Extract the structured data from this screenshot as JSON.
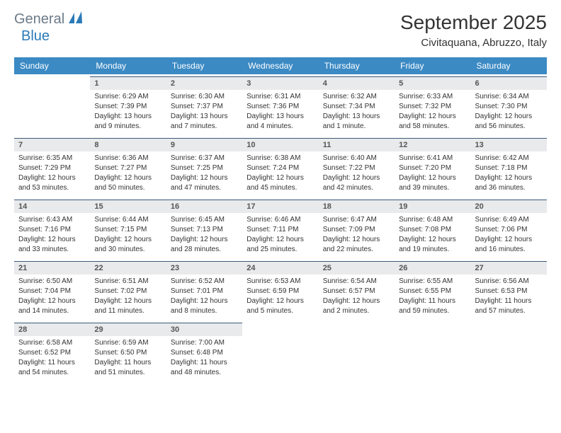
{
  "logo": {
    "text1": "General",
    "text2": "Blue"
  },
  "title": "September 2025",
  "location": "Civitaquana, Abruzzo, Italy",
  "colors": {
    "header_bg": "#3b8ac4",
    "header_text": "#ffffff",
    "day_number_bg": "#e9eaec",
    "day_number_border": "#3b5a7a",
    "logo_gray": "#6c7a89",
    "logo_blue": "#2a7ab8",
    "sail_blue": "#2a7ab8",
    "body_text": "#333333"
  },
  "weekdays": [
    "Sunday",
    "Monday",
    "Tuesday",
    "Wednesday",
    "Thursday",
    "Friday",
    "Saturday"
  ],
  "weeks": [
    [
      null,
      {
        "n": "1",
        "sr": "Sunrise: 6:29 AM",
        "ss": "Sunset: 7:39 PM",
        "dl": "Daylight: 13 hours and 9 minutes."
      },
      {
        "n": "2",
        "sr": "Sunrise: 6:30 AM",
        "ss": "Sunset: 7:37 PM",
        "dl": "Daylight: 13 hours and 7 minutes."
      },
      {
        "n": "3",
        "sr": "Sunrise: 6:31 AM",
        "ss": "Sunset: 7:36 PM",
        "dl": "Daylight: 13 hours and 4 minutes."
      },
      {
        "n": "4",
        "sr": "Sunrise: 6:32 AM",
        "ss": "Sunset: 7:34 PM",
        "dl": "Daylight: 13 hours and 1 minute."
      },
      {
        "n": "5",
        "sr": "Sunrise: 6:33 AM",
        "ss": "Sunset: 7:32 PM",
        "dl": "Daylight: 12 hours and 58 minutes."
      },
      {
        "n": "6",
        "sr": "Sunrise: 6:34 AM",
        "ss": "Sunset: 7:30 PM",
        "dl": "Daylight: 12 hours and 56 minutes."
      }
    ],
    [
      {
        "n": "7",
        "sr": "Sunrise: 6:35 AM",
        "ss": "Sunset: 7:29 PM",
        "dl": "Daylight: 12 hours and 53 minutes."
      },
      {
        "n": "8",
        "sr": "Sunrise: 6:36 AM",
        "ss": "Sunset: 7:27 PM",
        "dl": "Daylight: 12 hours and 50 minutes."
      },
      {
        "n": "9",
        "sr": "Sunrise: 6:37 AM",
        "ss": "Sunset: 7:25 PM",
        "dl": "Daylight: 12 hours and 47 minutes."
      },
      {
        "n": "10",
        "sr": "Sunrise: 6:38 AM",
        "ss": "Sunset: 7:24 PM",
        "dl": "Daylight: 12 hours and 45 minutes."
      },
      {
        "n": "11",
        "sr": "Sunrise: 6:40 AM",
        "ss": "Sunset: 7:22 PM",
        "dl": "Daylight: 12 hours and 42 minutes."
      },
      {
        "n": "12",
        "sr": "Sunrise: 6:41 AM",
        "ss": "Sunset: 7:20 PM",
        "dl": "Daylight: 12 hours and 39 minutes."
      },
      {
        "n": "13",
        "sr": "Sunrise: 6:42 AM",
        "ss": "Sunset: 7:18 PM",
        "dl": "Daylight: 12 hours and 36 minutes."
      }
    ],
    [
      {
        "n": "14",
        "sr": "Sunrise: 6:43 AM",
        "ss": "Sunset: 7:16 PM",
        "dl": "Daylight: 12 hours and 33 minutes."
      },
      {
        "n": "15",
        "sr": "Sunrise: 6:44 AM",
        "ss": "Sunset: 7:15 PM",
        "dl": "Daylight: 12 hours and 30 minutes."
      },
      {
        "n": "16",
        "sr": "Sunrise: 6:45 AM",
        "ss": "Sunset: 7:13 PM",
        "dl": "Daylight: 12 hours and 28 minutes."
      },
      {
        "n": "17",
        "sr": "Sunrise: 6:46 AM",
        "ss": "Sunset: 7:11 PM",
        "dl": "Daylight: 12 hours and 25 minutes."
      },
      {
        "n": "18",
        "sr": "Sunrise: 6:47 AM",
        "ss": "Sunset: 7:09 PM",
        "dl": "Daylight: 12 hours and 22 minutes."
      },
      {
        "n": "19",
        "sr": "Sunrise: 6:48 AM",
        "ss": "Sunset: 7:08 PM",
        "dl": "Daylight: 12 hours and 19 minutes."
      },
      {
        "n": "20",
        "sr": "Sunrise: 6:49 AM",
        "ss": "Sunset: 7:06 PM",
        "dl": "Daylight: 12 hours and 16 minutes."
      }
    ],
    [
      {
        "n": "21",
        "sr": "Sunrise: 6:50 AM",
        "ss": "Sunset: 7:04 PM",
        "dl": "Daylight: 12 hours and 14 minutes."
      },
      {
        "n": "22",
        "sr": "Sunrise: 6:51 AM",
        "ss": "Sunset: 7:02 PM",
        "dl": "Daylight: 12 hours and 11 minutes."
      },
      {
        "n": "23",
        "sr": "Sunrise: 6:52 AM",
        "ss": "Sunset: 7:01 PM",
        "dl": "Daylight: 12 hours and 8 minutes."
      },
      {
        "n": "24",
        "sr": "Sunrise: 6:53 AM",
        "ss": "Sunset: 6:59 PM",
        "dl": "Daylight: 12 hours and 5 minutes."
      },
      {
        "n": "25",
        "sr": "Sunrise: 6:54 AM",
        "ss": "Sunset: 6:57 PM",
        "dl": "Daylight: 12 hours and 2 minutes."
      },
      {
        "n": "26",
        "sr": "Sunrise: 6:55 AM",
        "ss": "Sunset: 6:55 PM",
        "dl": "Daylight: 11 hours and 59 minutes."
      },
      {
        "n": "27",
        "sr": "Sunrise: 6:56 AM",
        "ss": "Sunset: 6:53 PM",
        "dl": "Daylight: 11 hours and 57 minutes."
      }
    ],
    [
      {
        "n": "28",
        "sr": "Sunrise: 6:58 AM",
        "ss": "Sunset: 6:52 PM",
        "dl": "Daylight: 11 hours and 54 minutes."
      },
      {
        "n": "29",
        "sr": "Sunrise: 6:59 AM",
        "ss": "Sunset: 6:50 PM",
        "dl": "Daylight: 11 hours and 51 minutes."
      },
      {
        "n": "30",
        "sr": "Sunrise: 7:00 AM",
        "ss": "Sunset: 6:48 PM",
        "dl": "Daylight: 11 hours and 48 minutes."
      },
      null,
      null,
      null,
      null
    ]
  ]
}
